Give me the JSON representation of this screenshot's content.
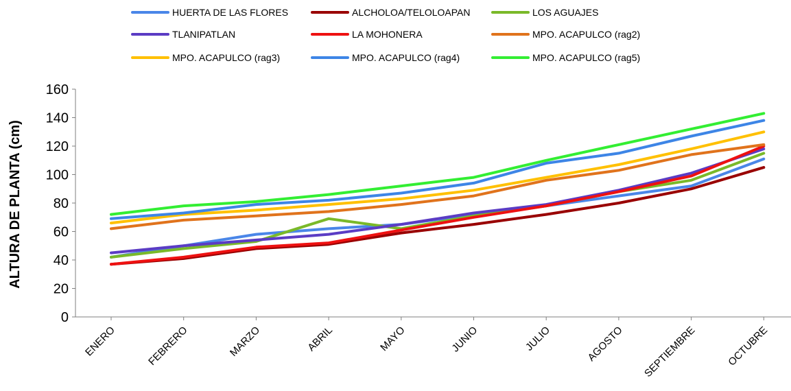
{
  "chart_data": {
    "type": "line",
    "title": "",
    "xlabel": "",
    "ylabel": "ALTURA DE PLANTA (cm)",
    "ylim": [
      0,
      160
    ],
    "yticks": [
      0,
      20,
      40,
      60,
      80,
      100,
      120,
      140,
      160
    ],
    "grid": false,
    "legend_position": "top",
    "categories": [
      "ENERO",
      "FEBRERO",
      "MARZO",
      "ABRIL",
      "MAYO",
      "JUNIO",
      "JULIO",
      "AGOSTO",
      "SEPTIEMBRE",
      "OCTUBRE"
    ],
    "series": [
      {
        "name": "HUERTA DE LAS FLORES",
        "color": "#4a86e8",
        "values": [
          42,
          50,
          58,
          62,
          65,
          72,
          78,
          85,
          92,
          111
        ]
      },
      {
        "name": "ALCHOLOA/TELOLOAPAN",
        "color": "#990000",
        "values": [
          37,
          41,
          48,
          51,
          59,
          65,
          72,
          80,
          90,
          105
        ]
      },
      {
        "name": "LOS AGUAJES",
        "color": "#7ab929",
        "values": [
          42,
          48,
          53,
          69,
          62,
          71,
          78,
          88,
          96,
          115
        ]
      },
      {
        "name": "TLANIPATLAN",
        "color": "#5b3cc4",
        "values": [
          45,
          50,
          54,
          58,
          65,
          73,
          79,
          89,
          101,
          118
        ]
      },
      {
        "name": "LA MOHONERA",
        "color": "#ee1111",
        "values": [
          37,
          42,
          49,
          52,
          61,
          70,
          78,
          88,
          99,
          120
        ]
      },
      {
        "name": "MPO. ACAPULCO (rag2)",
        "color": "#e0731c",
        "values": [
          62,
          68,
          71,
          74,
          79,
          85,
          96,
          103,
          114,
          121
        ]
      },
      {
        "name": "MPO. ACAPULCO (rag3)",
        "color": "#ffc000",
        "values": [
          66,
          72,
          75,
          79,
          83,
          89,
          98,
          107,
          118,
          130
        ]
      },
      {
        "name": "MPO. ACAPULCO (rag4)",
        "color": "#3d85e6",
        "values": [
          69,
          73,
          79,
          82,
          87,
          94,
          108,
          115,
          127,
          138
        ]
      },
      {
        "name": "MPO. ACAPULCO (rag5)",
        "color": "#33ee33",
        "values": [
          72,
          78,
          81,
          86,
          92,
          98,
          110,
          121,
          132,
          143
        ]
      }
    ]
  }
}
